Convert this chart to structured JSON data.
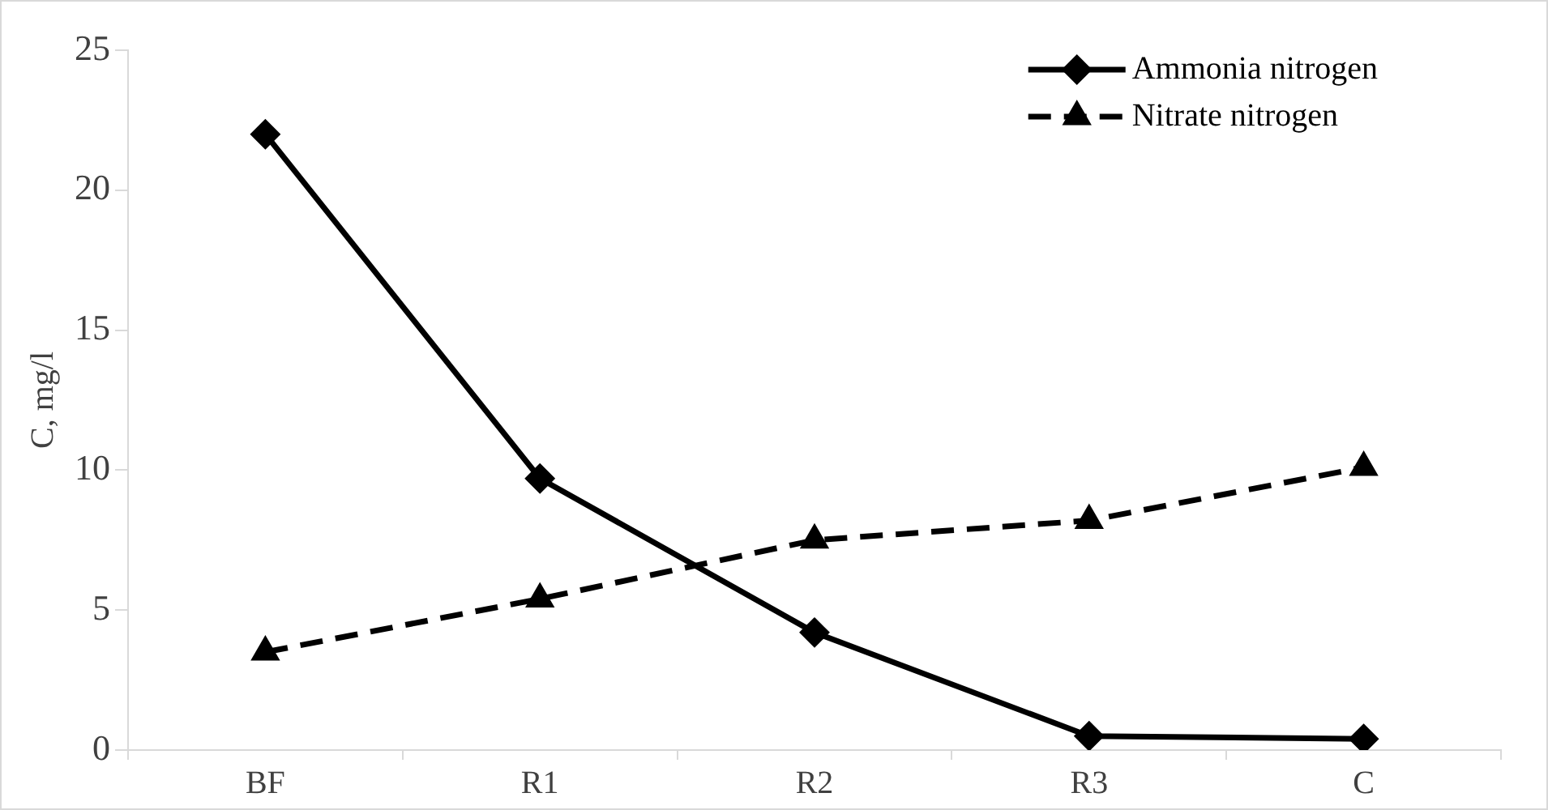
{
  "chart_data": {
    "type": "line",
    "ylabel": "C, mg/l",
    "categories": [
      "BF",
      "R1",
      "R2",
      "R3",
      "C"
    ],
    "series": [
      {
        "name": "Ammonia nitrogen",
        "color": "#000000",
        "values": [
          22.0,
          9.7,
          4.2,
          0.5,
          0.4
        ],
        "marker": "diamond",
        "line_style": "solid"
      },
      {
        "name": "Nitrate nitrogen",
        "color": "#000000",
        "values": [
          3.5,
          5.4,
          7.5,
          8.2,
          10.1
        ],
        "marker": "triangle",
        "line_style": "dashed"
      }
    ],
    "ylim": [
      0,
      25
    ],
    "yticks": [
      0,
      5,
      10,
      15,
      20,
      25
    ],
    "grid": false,
    "legend": "top right"
  }
}
